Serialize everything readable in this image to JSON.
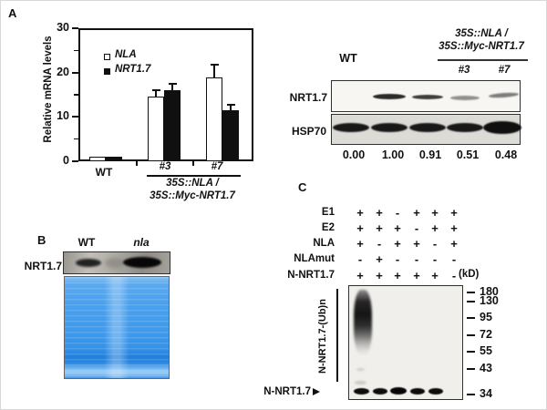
{
  "panels": {
    "a": {
      "label": "A",
      "blot": {
        "wt_label": "WT",
        "genotype_header_line1": "35S::NLA /",
        "genotype_header_line2": "35S::Myc-NRT1.7",
        "lane_labels": [
          "#3",
          "#7"
        ],
        "row_labels": [
          "NRT1.7",
          "HSP70"
        ],
        "quantification": [
          "0.00",
          "1.00",
          "0.91",
          "0.51",
          "0.48"
        ]
      }
    },
    "b": {
      "label": "B",
      "lane_labels": [
        "WT",
        "nla"
      ],
      "row_label": "NRT1.7"
    },
    "c": {
      "label": "C",
      "conditions": [
        {
          "name": "E1",
          "values": [
            "+",
            "+",
            "-",
            "+",
            "+",
            "+"
          ]
        },
        {
          "name": "E2",
          "values": [
            "+",
            "+",
            "+",
            "-",
            "+",
            "+"
          ]
        },
        {
          "name": "NLA",
          "values": [
            "+",
            "-",
            "+",
            "+",
            "-",
            "+"
          ]
        },
        {
          "name": "NLAmut",
          "values": [
            "-",
            "+",
            "-",
            "-",
            "-",
            "-"
          ]
        },
        {
          "name": "N-NRT1.7",
          "values": [
            "+",
            "+",
            "+",
            "+",
            "+",
            "-"
          ]
        }
      ],
      "kd_unit": "(kD)",
      "mw_markers": [
        "180",
        "130",
        "95",
        "72",
        "55",
        "43",
        "34"
      ],
      "smear_bracket_label": "N-NRT1.7-(Ub)n",
      "free_band_label": "N-NRT1.7"
    }
  },
  "chart_data": {
    "type": "bar",
    "title": "",
    "ylabel": "Relative mRNA levels",
    "xlabel": "",
    "ylim": [
      0,
      30
    ],
    "yticks": [
      0,
      10,
      20,
      30
    ],
    "yticks_minor": [
      5,
      15,
      25
    ],
    "categories": [
      "WT",
      "#3",
      "#7"
    ],
    "group_label_lines": [
      "35S::NLA /",
      "35S::Myc-NRT1.7"
    ],
    "grouped_categories": [
      "#3",
      "#7"
    ],
    "series": [
      {
        "name": "NLA",
        "fill": "white",
        "values": [
          1,
          14.5,
          19
        ],
        "errors": [
          0.2,
          1.5,
          2.7
        ]
      },
      {
        "name": "NRT1.7",
        "fill": "black",
        "values": [
          1,
          16,
          11.5
        ],
        "errors": [
          0.2,
          1.4,
          1.2
        ]
      }
    ],
    "legend_position": "top-left-inside",
    "grid": false
  }
}
